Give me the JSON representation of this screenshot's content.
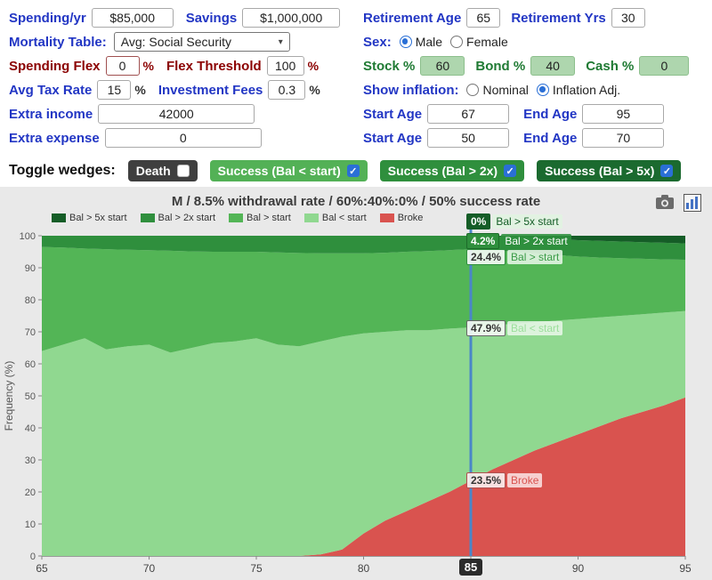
{
  "colors": {
    "label_blue": "#2236c4",
    "label_dark_red": "#8b0000",
    "label_green": "#1f7a33",
    "badge_dark": "#2b2b2b"
  },
  "form": {
    "spending_label": "Spending/yr",
    "spending_value": "$85,000",
    "savings_label": "Savings",
    "savings_value": "$1,000,000",
    "retirement_age_label": "Retirement Age",
    "retirement_age_value": "65",
    "retirement_yrs_label": "Retirement Yrs",
    "retirement_yrs_value": "30",
    "mortality_label": "Mortality Table:",
    "mortality_value": "Avg: Social Security",
    "sex_label": "Sex:",
    "sex_options": [
      "Male",
      "Female"
    ],
    "sex_selected": "Male",
    "spending_flex_label": "Spending Flex",
    "spending_flex_value": "0",
    "flex_threshold_label": "Flex Threshold",
    "flex_threshold_value": "100",
    "percent_sign": "%",
    "stock_label": "Stock %",
    "stock_value": "60",
    "bond_label": "Bond %",
    "bond_value": "40",
    "cash_label": "Cash %",
    "cash_value": "0",
    "avg_tax_label": "Avg Tax Rate",
    "avg_tax_value": "15",
    "fees_label": "Investment Fees",
    "fees_value": "0.3",
    "inflation_label": "Show inflation:",
    "inflation_options": [
      "Nominal",
      "Inflation Adj."
    ],
    "inflation_selected": "Inflation Adj.",
    "extra_income_label": "Extra income",
    "extra_income_value": "42000",
    "extra_expense_label": "Extra expense",
    "extra_expense_value": "0",
    "income_start_label": "Start Age",
    "income_start_value": "67",
    "income_end_label": "End Age",
    "income_end_value": "95",
    "expense_start_label": "Start Age",
    "expense_start_value": "50",
    "expense_end_label": "End Age",
    "expense_end_value": "70",
    "toggle_label": "Toggle wedges:",
    "toggles": [
      {
        "label": "Death",
        "checked": false,
        "bg": "#3f3f3f"
      },
      {
        "label": "Success (Bal < start)",
        "checked": true,
        "bg": "#53b156"
      },
      {
        "label": "Success (Bal > 2x)",
        "checked": true,
        "bg": "#2f8f3d"
      },
      {
        "label": "Success (Bal > 5x)",
        "checked": true,
        "bg": "#1b6a2f"
      }
    ]
  },
  "chart_data": {
    "type": "area",
    "stacked": true,
    "title": "M / 8.5% withdrawal rate / 60%:40%:0% / 50% success rate",
    "ylabel": "Frequency (%)",
    "ylim": [
      0,
      100
    ],
    "xlim": [
      65,
      95
    ],
    "x_ticks": [
      65,
      70,
      75,
      80,
      85,
      90,
      95
    ],
    "y_ticks": [
      0,
      10,
      20,
      30,
      40,
      50,
      60,
      70,
      80,
      90,
      100
    ],
    "highlight_age": 85,
    "line_color": "#4a86c8",
    "x": [
      65,
      66,
      67,
      68,
      69,
      70,
      71,
      72,
      73,
      74,
      75,
      76,
      77,
      78,
      79,
      80,
      81,
      82,
      83,
      84,
      85,
      86,
      87,
      88,
      89,
      90,
      91,
      92,
      93,
      94,
      95
    ],
    "series": [
      {
        "name": "Broke",
        "color": "#d9534f",
        "values": [
          0,
          0,
          0,
          0,
          0,
          0,
          0,
          0,
          0,
          0,
          0,
          0,
          0,
          0.5,
          2,
          7,
          11,
          14,
          17,
          20,
          23.5,
          27,
          30,
          33,
          35.5,
          38,
          40.5,
          43,
          45,
          47,
          49.5
        ]
      },
      {
        "name": "Bal < start",
        "color": "#90d890",
        "values": [
          64,
          66,
          68,
          64.5,
          65.5,
          66,
          63.5,
          65,
          66.5,
          67,
          68,
          66,
          65.5,
          66.5,
          66.5,
          62.5,
          59,
          56.5,
          53.5,
          51,
          47.9,
          45,
          42.5,
          40,
          38,
          36,
          34,
          32,
          30.5,
          29,
          27
        ]
      },
      {
        "name": "Bal > start",
        "color": "#53b556",
        "values": [
          32.5,
          30.3,
          28,
          31.3,
          30.1,
          29.5,
          31.8,
          30.1,
          28.5,
          28,
          27,
          28.8,
          29.1,
          27.5,
          26,
          25,
          24.7,
          24.5,
          24.7,
          24.5,
          24.4,
          23.5,
          22.5,
          21.5,
          20.5,
          19.5,
          18.7,
          18,
          17.3,
          16.6,
          16
        ]
      },
      {
        "name": "Bal > 2x start",
        "color": "#2f8f3d",
        "values": [
          3.5,
          3.7,
          4,
          4.2,
          4.4,
          4.5,
          4.7,
          4.9,
          5,
          5,
          5,
          5.2,
          5.4,
          5.5,
          5.5,
          5.5,
          5.3,
          5,
          4.8,
          4.5,
          4.2,
          4.5,
          4.6,
          4.7,
          4.9,
          5.1,
          5.2,
          5.2,
          5.2,
          5.2,
          5.1
        ]
      },
      {
        "name": "Bal > 5x start",
        "color": "#155d27",
        "values": [
          0,
          0,
          0,
          0,
          0,
          0,
          0,
          0,
          0,
          0,
          0,
          0,
          0,
          0,
          0,
          0,
          0,
          0,
          0,
          0,
          0,
          0,
          0.4,
          0.8,
          1.1,
          1.4,
          1.6,
          1.8,
          2,
          2.2,
          2.4
        ]
      }
    ],
    "legend": [
      {
        "label": "Bal > 5x start",
        "color": "#155d27"
      },
      {
        "label": "Bal > 2x start",
        "color": "#2f8f3d"
      },
      {
        "label": "Bal > start",
        "color": "#53b556"
      },
      {
        "label": "Bal < start",
        "color": "#90d890"
      },
      {
        "label": "Broke",
        "color": "#d9534f"
      }
    ],
    "callouts": [
      {
        "pct": "0%",
        "label": "Bal > 5x start",
        "y": 104.5,
        "chip_bg": "#155d27",
        "chip_color": "#ffffff",
        "chip_border": "#155d27",
        "label_bg": "rgba(225,243,225,0.9)",
        "label_color": "#155d27"
      },
      {
        "pct": "4.2%",
        "label": "Bal > 2x start",
        "y": 98.2,
        "chip_bg": "#2f8f3d",
        "chip_color": "#ffffff",
        "chip_border": "#1d6b2a",
        "label_bg": "rgba(47,143,61,0.88)",
        "label_color": "#ffffff"
      },
      {
        "pct": "24.4%",
        "label": "Bal > start",
        "y": 93.4,
        "chip_bg": "rgba(243,250,243,0.92)",
        "chip_color": "#333333",
        "chip_border": "#2f8f3d",
        "label_bg": "rgba(235,248,235,0.85)",
        "label_color": "#3a9a47"
      },
      {
        "pct": "47.9%",
        "label": "Bal < start",
        "y": 71,
        "chip_bg": "rgba(243,250,243,0.92)",
        "chip_color": "#333333",
        "chip_border": "#666666",
        "label_bg": "rgba(240,250,240,0.8)",
        "label_color": "#9bdf9b"
      },
      {
        "pct": "23.5%",
        "label": "Broke",
        "y": 23.5,
        "chip_bg": "rgba(250,238,238,0.92)",
        "chip_color": "#333333",
        "chip_border": "#b05050",
        "label_bg": "rgba(250,230,230,0.85)",
        "label_color": "#d9534f"
      }
    ]
  }
}
